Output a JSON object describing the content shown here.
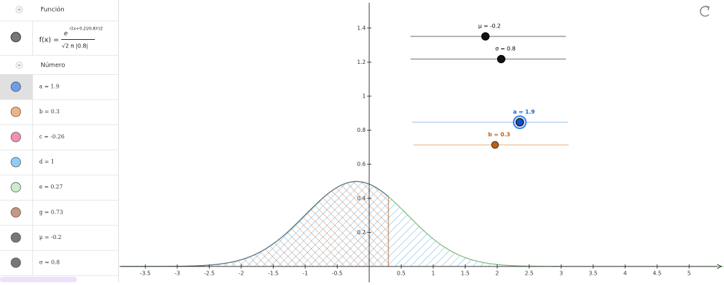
{
  "algebra": {
    "sections": [
      {
        "title": "Función"
      },
      {
        "title": "Número"
      }
    ],
    "function": {
      "lhs": "f(x) =",
      "numerator": "e",
      "exponent": "-((x+0.2)/0.8)²/2",
      "denominator": "√2 π |0.8|",
      "color": "#777777"
    },
    "numbers": [
      {
        "label": "a = 1.9",
        "color": "#6d9eeb"
      },
      {
        "label": "b = 0.3",
        "color": "#f3b27d"
      },
      {
        "label": "c = -0.26",
        "color": "#f48fb1"
      },
      {
        "label": "d = 1",
        "color": "#90cdf4"
      },
      {
        "label": "e = 0.27",
        "color": "#cdeccf"
      },
      {
        "label": "g = 0.73",
        "color": "#c99780"
      },
      {
        "label": "μ = -0.2",
        "color": "#777777"
      },
      {
        "label": "σ = 0.8",
        "color": "#777777"
      }
    ]
  },
  "graphics": {
    "mu": -0.2,
    "sigma": 0.8,
    "a": 1.9,
    "b": 0.3,
    "xticks": [
      -3.5,
      -3,
      -2.5,
      -2,
      -1.5,
      -1,
      -0.5,
      0.5,
      1,
      1.5,
      2,
      2.5,
      3,
      3.5,
      4,
      4.5,
      5
    ],
    "yticks": [
      0.2,
      0.4,
      0.6,
      0.8,
      1,
      1.2,
      1.4
    ],
    "sliders": [
      {
        "label": "μ = -0.2",
        "color": "#000000"
      },
      {
        "label": "σ = 0.8",
        "color": "#000000"
      },
      {
        "label": "a = 1.9",
        "color": "#1565e0"
      },
      {
        "label": "b = 0.3",
        "color": "#c06010"
      }
    ]
  }
}
